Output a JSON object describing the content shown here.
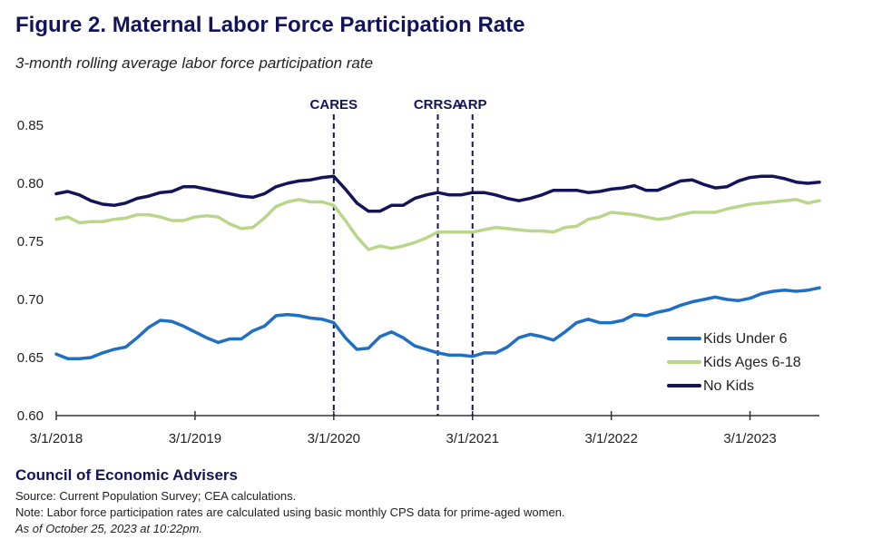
{
  "header": {
    "title": "Figure 2. Maternal Labor Force Participation Rate",
    "subtitle": "3-month rolling average labor force participation rate"
  },
  "footer": {
    "org": "Council of Economic Advisers",
    "source": "Source:  Current Population Survey; CEA calculations.",
    "note": "Note: Labor force participation rates are calculated using basic monthly CPS data for prime-aged women.",
    "asof": "As of October 25, 2023 at 10:22pm."
  },
  "colors": {
    "kids_under_6": "#1f6fc4",
    "kids_6_18": "#b9d68a",
    "no_kids": "#14145a",
    "events": "#14145a"
  },
  "chart_data": {
    "type": "line",
    "x_start": "2018-03",
    "x_labels": [
      "3/1/2018",
      "3/1/2019",
      "3/1/2020",
      "3/1/2021",
      "3/1/2022",
      "3/1/2023"
    ],
    "y_ticks": [
      "0.85",
      "0.80",
      "0.75",
      "0.70",
      "0.65",
      "0.60"
    ],
    "ylim": [
      0.6,
      0.85
    ],
    "events": [
      {
        "label": "CARES",
        "date": "2020-03"
      },
      {
        "label": "CRRSA",
        "date": "2020-12"
      },
      {
        "label": "ARP",
        "date": "2021-03"
      }
    ],
    "legend_position": "bottom-right",
    "series": [
      {
        "name": "Kids Under 6",
        "values": [
          0.653,
          0.649,
          0.649,
          0.65,
          0.654,
          0.657,
          0.659,
          0.667,
          0.676,
          0.682,
          0.681,
          0.677,
          0.672,
          0.667,
          0.663,
          0.666,
          0.666,
          0.673,
          0.677,
          0.686,
          0.687,
          0.686,
          0.684,
          0.683,
          0.68,
          0.667,
          0.657,
          0.658,
          0.668,
          0.672,
          0.667,
          0.66,
          0.657,
          0.654,
          0.652,
          0.652,
          0.651,
          0.654,
          0.654,
          0.659,
          0.667,
          0.67,
          0.668,
          0.665,
          0.672,
          0.68,
          0.683,
          0.68,
          0.68,
          0.682,
          0.687,
          0.686,
          0.689,
          0.691,
          0.695,
          0.698,
          0.7,
          0.702,
          0.7,
          0.699,
          0.701,
          0.705,
          0.707,
          0.708,
          0.707,
          0.708,
          0.71
        ]
      },
      {
        "name": "Kids Ages 6-18",
        "values": [
          0.769,
          0.771,
          0.766,
          0.767,
          0.767,
          0.769,
          0.77,
          0.773,
          0.773,
          0.771,
          0.768,
          0.768,
          0.771,
          0.772,
          0.771,
          0.765,
          0.761,
          0.762,
          0.77,
          0.78,
          0.784,
          0.786,
          0.784,
          0.784,
          0.781,
          0.768,
          0.754,
          0.743,
          0.746,
          0.744,
          0.746,
          0.749,
          0.753,
          0.758,
          0.758,
          0.758,
          0.758,
          0.76,
          0.762,
          0.761,
          0.76,
          0.759,
          0.759,
          0.758,
          0.762,
          0.763,
          0.769,
          0.771,
          0.775,
          0.774,
          0.773,
          0.771,
          0.769,
          0.77,
          0.773,
          0.775,
          0.775,
          0.775,
          0.778,
          0.78,
          0.782,
          0.783,
          0.784,
          0.785,
          0.786,
          0.783,
          0.785
        ]
      },
      {
        "name": "No Kids",
        "values": [
          0.791,
          0.793,
          0.79,
          0.785,
          0.782,
          0.781,
          0.783,
          0.787,
          0.789,
          0.792,
          0.793,
          0.797,
          0.797,
          0.795,
          0.793,
          0.791,
          0.789,
          0.788,
          0.791,
          0.797,
          0.8,
          0.802,
          0.803,
          0.805,
          0.806,
          0.795,
          0.783,
          0.776,
          0.776,
          0.781,
          0.781,
          0.787,
          0.79,
          0.792,
          0.79,
          0.79,
          0.792,
          0.792,
          0.79,
          0.787,
          0.785,
          0.787,
          0.79,
          0.794,
          0.794,
          0.794,
          0.792,
          0.793,
          0.795,
          0.796,
          0.798,
          0.794,
          0.794,
          0.798,
          0.802,
          0.803,
          0.799,
          0.796,
          0.797,
          0.802,
          0.805,
          0.806,
          0.806,
          0.804,
          0.801,
          0.8,
          0.801
        ]
      }
    ]
  }
}
